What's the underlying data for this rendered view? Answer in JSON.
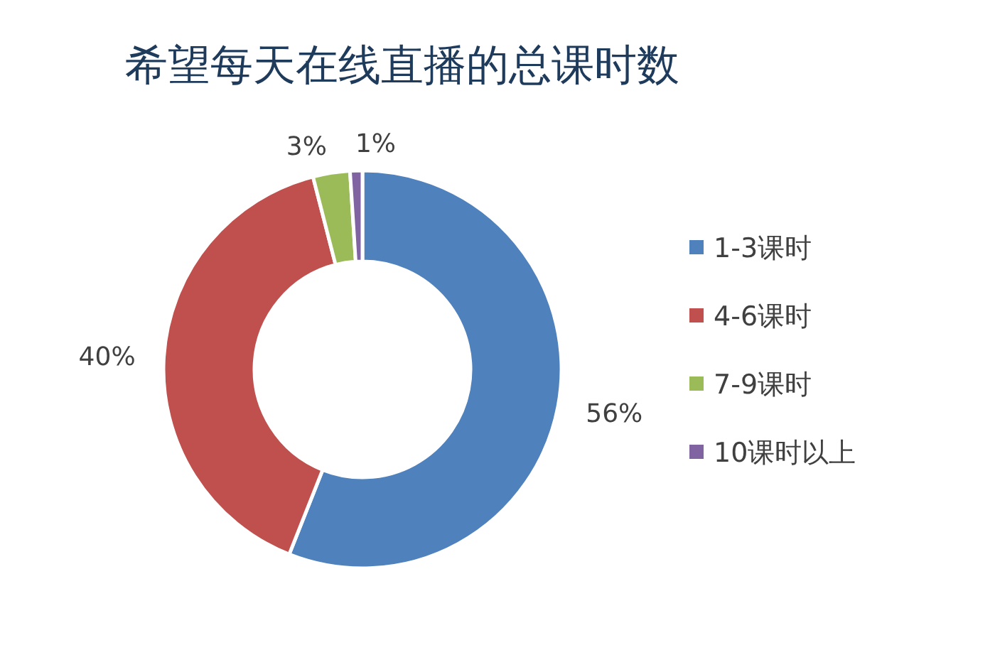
{
  "chart_data": {
    "type": "donut",
    "title": "希望每天在线直播的总课时数",
    "categories": [
      "1-3课时",
      "4-6课时",
      "7-9课时",
      "10课时以上"
    ],
    "values": [
      56,
      40,
      3,
      1
    ],
    "colors": [
      "#4f81bd",
      "#c0504d",
      "#9bbb59",
      "#8064a2"
    ],
    "value_labels": [
      "56%",
      "40%",
      "3%",
      "1%"
    ],
    "legend": "right"
  }
}
